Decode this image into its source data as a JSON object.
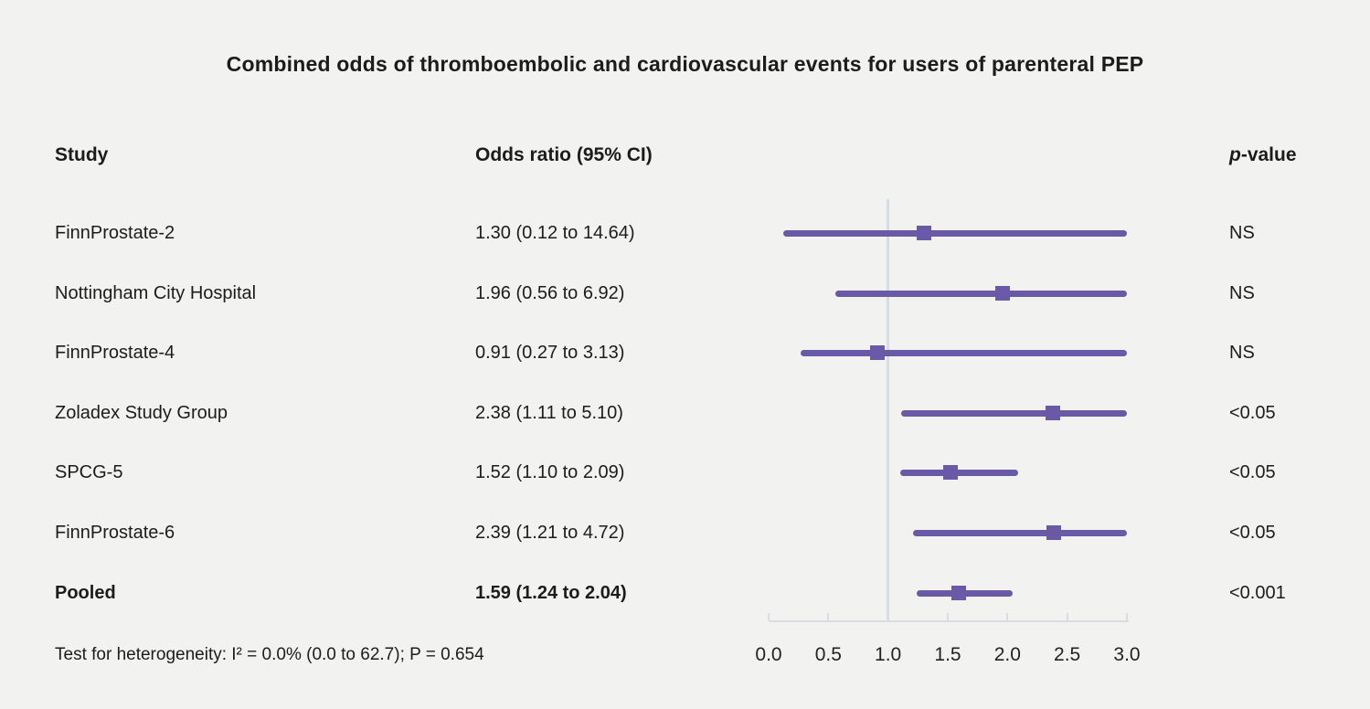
{
  "title": "Combined odds of thromboembolic and cardiovascular events for users of parenteral PEP",
  "header": {
    "study": "Study",
    "odds_ratio": "Odds ratio (95% CI)",
    "p_italic": "p",
    "p_rest": "-value"
  },
  "footnote": "Test for heterogeneity: I² = 0.0% (0.0 to 62.7); P = 0.654",
  "colors": {
    "accent_purple": "#6959a7",
    "axis_gray": "#d9dde3",
    "background": "#f2f2f1",
    "text": "#1c1c1c"
  },
  "chart_data": {
    "type": "forest",
    "title": "Combined odds of thromboembolic and cardiovascular events for users of parenteral PEP",
    "x_ticks": [
      "0.0",
      "0.5",
      "1.0",
      "1.5",
      "2.0",
      "2.5",
      "3.0"
    ],
    "xlim": [
      0.0,
      3.0
    ],
    "reference_line": 1.0,
    "marker": "square",
    "studies": [
      {
        "name": "FinnProstate-2",
        "or_ci": "1.30 (0.12 to 14.64)",
        "estimate": 1.3,
        "ci_low": 0.12,
        "ci_high": 14.64,
        "p_value": "NS",
        "bold": false
      },
      {
        "name": "Nottingham City Hospital",
        "or_ci": "1.96 (0.56 to 6.92)",
        "estimate": 1.96,
        "ci_low": 0.56,
        "ci_high": 6.92,
        "p_value": "NS",
        "bold": false
      },
      {
        "name": "FinnProstate-4",
        "or_ci": "0.91 (0.27 to 3.13)",
        "estimate": 0.91,
        "ci_low": 0.27,
        "ci_high": 3.13,
        "p_value": "NS",
        "bold": false
      },
      {
        "name": "Zoladex Study Group",
        "or_ci": "2.38 (1.11 to 5.10)",
        "estimate": 2.38,
        "ci_low": 1.11,
        "ci_high": 5.1,
        "p_value": "<0.05",
        "bold": false
      },
      {
        "name": "SPCG-5",
        "or_ci": "1.52 (1.10 to 2.09)",
        "estimate": 1.52,
        "ci_low": 1.1,
        "ci_high": 2.09,
        "p_value": "<0.05",
        "bold": false
      },
      {
        "name": "FinnProstate-6",
        "or_ci": "2.39 (1.21 to 4.72)",
        "estimate": 2.39,
        "ci_low": 1.21,
        "ci_high": 4.72,
        "p_value": "<0.05",
        "bold": false
      },
      {
        "name": "Pooled",
        "or_ci": "1.59 (1.24 to 2.04)",
        "estimate": 1.59,
        "ci_low": 1.24,
        "ci_high": 2.04,
        "p_value": "<0.001",
        "bold": true
      }
    ]
  }
}
